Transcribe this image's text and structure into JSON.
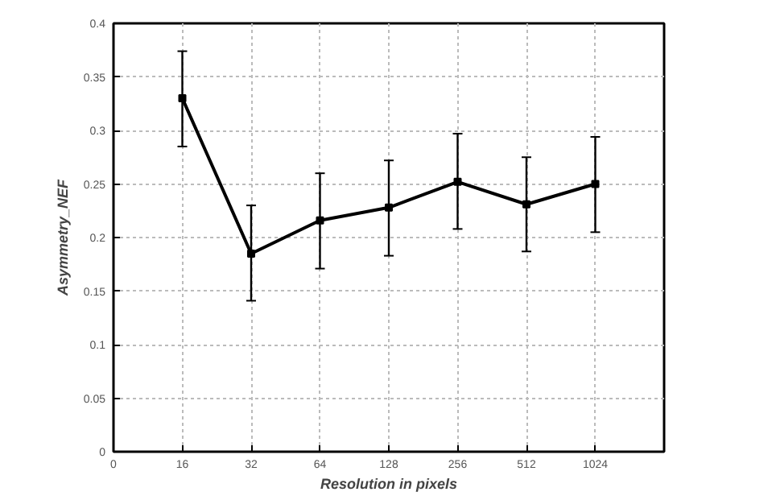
{
  "chart_data": {
    "type": "line",
    "xlabel": "Resolution in pixels",
    "ylabel": "Asymmetry_NEF",
    "categories": [
      "0",
      "16",
      "32",
      "64",
      "128",
      "256",
      "512",
      "1024"
    ],
    "series": [
      {
        "color": "#000000",
        "values": [
          null,
          0.33,
          0.185,
          0.216,
          0.228,
          0.252,
          0.231,
          0.25
        ],
        "errors": [
          null,
          [
            0.285,
            0.374
          ],
          [
            0.141,
            0.23
          ],
          [
            0.171,
            0.26
          ],
          [
            0.183,
            0.272
          ],
          [
            0.208,
            0.297
          ],
          [
            0.187,
            0.275
          ],
          [
            0.205,
            0.294
          ]
        ]
      }
    ],
    "ylim": [
      0,
      0.4
    ],
    "yticks": [
      0,
      0.05,
      0.1,
      0.15,
      0.2,
      0.25,
      0.3,
      0.35,
      0.4
    ],
    "grid": true,
    "marker": "square",
    "line_style": "solid"
  }
}
